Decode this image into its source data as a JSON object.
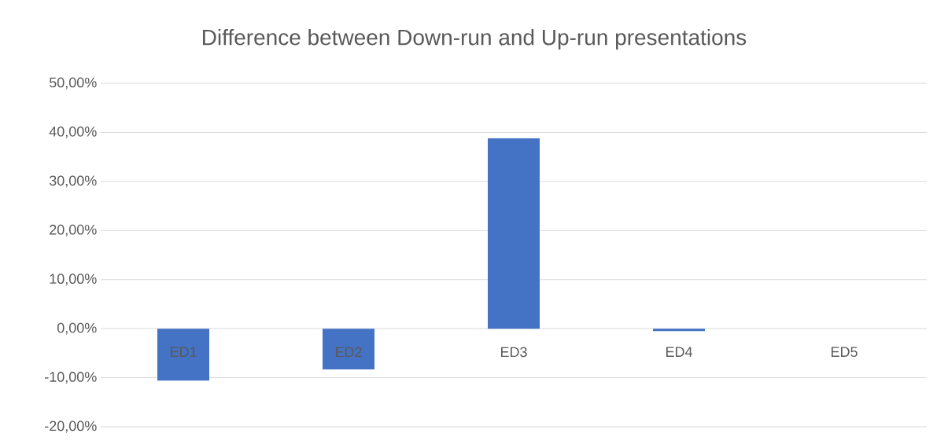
{
  "chart_data": {
    "type": "bar",
    "title": "Difference between Down-run and Up-run presentations",
    "categories": [
      "ED1",
      "ED2",
      "ED3",
      "ED4",
      "ED5"
    ],
    "values": [
      -10.6,
      -8.3,
      38.8,
      -0.5,
      0
    ],
    "color": "#4472c4",
    "ylim": [
      -20,
      50
    ],
    "yticks": [
      {
        "value": -20,
        "label": "-20,00%"
      },
      {
        "value": -10,
        "label": "-10,00%"
      },
      {
        "value": 0,
        "label": "0,00%"
      },
      {
        "value": 10,
        "label": "10,00%"
      },
      {
        "value": 20,
        "label": "20,00%"
      },
      {
        "value": 30,
        "label": "30,00%"
      },
      {
        "value": 40,
        "label": "40,00%"
      },
      {
        "value": 50,
        "label": "50,00%"
      }
    ],
    "grid": "y"
  }
}
